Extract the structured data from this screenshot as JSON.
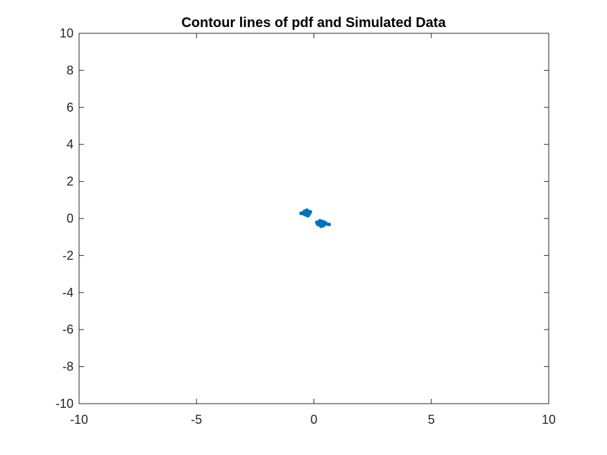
{
  "chart_data": {
    "type": "scatter",
    "title": "Contour lines of pdf and Simulated Data",
    "xlabel": "",
    "ylabel": "",
    "xlim": [
      -10,
      10
    ],
    "ylim": [
      -10,
      10
    ],
    "x_ticks": [
      -10,
      -5,
      0,
      5,
      10
    ],
    "y_ticks": [
      -10,
      -8,
      -6,
      -4,
      -2,
      0,
      2,
      4,
      6,
      8,
      10
    ],
    "x_tick_labels": [
      "-10",
      "-5",
      "0",
      "5",
      "10"
    ],
    "y_tick_labels": [
      "-10",
      "-8",
      "-6",
      "-4",
      "-2",
      "0",
      "2",
      "4",
      "6",
      "8",
      "10"
    ],
    "grid": false,
    "box": true,
    "series": [
      {
        "color": "#0072BD",
        "marker": "dot",
        "points": [
          [
            -0.35,
            0.3
          ],
          [
            -0.3,
            0.35
          ],
          [
            -0.25,
            0.28
          ],
          [
            -0.38,
            0.22
          ],
          [
            -0.28,
            0.4
          ],
          [
            -0.42,
            0.32
          ],
          [
            -0.22,
            0.33
          ],
          [
            -0.32,
            0.18
          ],
          [
            -0.45,
            0.25
          ],
          [
            -0.3,
            0.26
          ],
          [
            -0.36,
            0.38
          ],
          [
            -0.2,
            0.24
          ],
          [
            -0.27,
            0.2
          ],
          [
            -0.4,
            0.4
          ],
          [
            -0.33,
            0.3
          ],
          [
            -0.48,
            0.3
          ],
          [
            -0.18,
            0.3
          ],
          [
            -0.3,
            0.45
          ],
          [
            -0.25,
            0.15
          ],
          [
            -0.37,
            0.28
          ],
          [
            -0.55,
            0.28
          ],
          [
            -0.15,
            0.36
          ],
          [
            -0.29,
            0.33
          ],
          [
            -0.34,
            0.24
          ],
          [
            -0.23,
            0.38
          ],
          [
            0.3,
            -0.2
          ],
          [
            0.35,
            -0.25
          ],
          [
            0.25,
            -0.3
          ],
          [
            0.4,
            -0.18
          ],
          [
            0.28,
            -0.38
          ],
          [
            0.2,
            -0.25
          ],
          [
            0.38,
            -0.32
          ],
          [
            0.33,
            -0.15
          ],
          [
            0.22,
            -0.2
          ],
          [
            0.45,
            -0.27
          ],
          [
            0.3,
            -0.42
          ],
          [
            0.18,
            -0.33
          ],
          [
            0.36,
            -0.22
          ],
          [
            0.27,
            -0.28
          ],
          [
            0.42,
            -0.36
          ],
          [
            0.15,
            -0.28
          ],
          [
            0.48,
            -0.22
          ],
          [
            0.32,
            -0.35
          ],
          [
            0.25,
            -0.12
          ],
          [
            0.38,
            -0.4
          ],
          [
            0.55,
            -0.3
          ],
          [
            0.65,
            -0.32
          ],
          [
            0.12,
            -0.2
          ],
          [
            0.3,
            -0.3
          ],
          [
            0.34,
            -0.27
          ]
        ]
      }
    ]
  }
}
